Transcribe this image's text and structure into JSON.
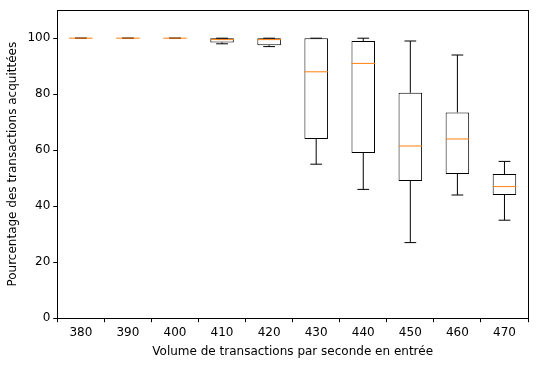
{
  "chart_data": {
    "type": "box",
    "x_label": "Volume de transactions par seconde en entrée",
    "y_label": "Pourcentage des transactions acquittées",
    "categories": [
      "380",
      "390",
      "400",
      "410",
      "420",
      "430",
      "440",
      "450",
      "460",
      "470"
    ],
    "stats": [
      {
        "whislo": 100,
        "q1": 100,
        "med": 100,
        "q3": 100,
        "whishi": 100
      },
      {
        "whislo": 100,
        "q1": 100,
        "med": 100,
        "q3": 100,
        "whishi": 100
      },
      {
        "whislo": 100,
        "q1": 100,
        "med": 100,
        "q3": 100,
        "whishi": 100
      },
      {
        "whislo": 98,
        "q1": 98.5,
        "med": 99.5,
        "q3": 100,
        "whishi": 100
      },
      {
        "whislo": 97,
        "q1": 97.5,
        "med": 99.5,
        "q3": 100,
        "whishi": 100
      },
      {
        "whislo": 55,
        "q1": 64,
        "med": 88,
        "q3": 100,
        "whishi": 100
      },
      {
        "whislo": 46,
        "q1": 59,
        "med": 91,
        "q3": 99,
        "whishi": 100
      },
      {
        "whislo": 27,
        "q1": 49,
        "med": 61.5,
        "q3": 80.5,
        "whishi": 99
      },
      {
        "whislo": 44,
        "q1": 51.5,
        "med": 64,
        "q3": 73.5,
        "whishi": 94
      },
      {
        "whislo": 35,
        "q1": 44,
        "med": 47,
        "q3": 51.5,
        "whishi": 56
      }
    ],
    "color": "#000000",
    "ylim": [
      0,
      110
    ],
    "yticks": [
      0,
      20,
      40,
      60,
      80,
      100
    ],
    "grid": false
  }
}
